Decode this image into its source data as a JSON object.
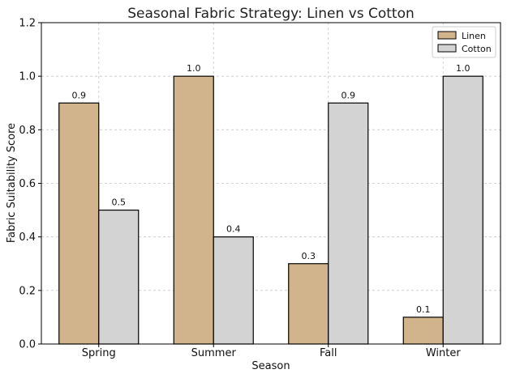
{
  "chart_data": {
    "type": "bar",
    "title": "Seasonal Fabric Strategy: Linen vs Cotton",
    "xlabel": "Season",
    "ylabel": "Fabric Suitability Score",
    "categories": [
      "Spring",
      "Summer",
      "Fall",
      "Winter"
    ],
    "series": [
      {
        "name": "Linen",
        "values": [
          0.9,
          1.0,
          0.3,
          0.1
        ],
        "color": "#d2b48c"
      },
      {
        "name": "Cotton",
        "values": [
          0.5,
          0.4,
          0.9,
          1.0
        ],
        "color": "#d3d3d3"
      }
    ],
    "data_labels": [
      [
        "0.9",
        "1.0",
        "0.3",
        "0.1"
      ],
      [
        "0.5",
        "0.4",
        "0.9",
        "1.0"
      ]
    ],
    "ylim": [
      0,
      1.2
    ],
    "yticks": [
      0.0,
      0.2,
      0.4,
      0.6,
      0.8,
      1.0,
      1.2
    ],
    "ytick_labels": [
      "0.0",
      "0.2",
      "0.4",
      "0.6",
      "0.8",
      "1.0",
      "1.2"
    ],
    "grid": true,
    "legend_position": "top-right"
  }
}
